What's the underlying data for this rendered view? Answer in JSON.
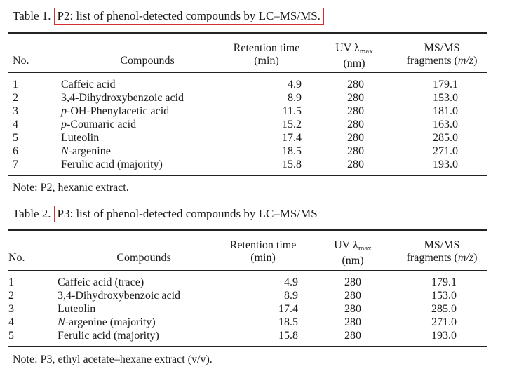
{
  "table1": {
    "label": "Table 1.",
    "caption": "P2: list of phenol-detected compounds by LC–MS/MS.",
    "headers": {
      "no": "No.",
      "compounds": "Compounds",
      "rt_line1": "Retention time",
      "rt_line2": "(min)",
      "uv_prefix": "UV λ",
      "uv_sub": "max",
      "uv_line2": "(nm)",
      "ms_line1": "MS/MS",
      "ms_line2_prefix": "fragments (",
      "ms_line2_ital": "m/z",
      "ms_line2_suffix": ")"
    },
    "rows": [
      {
        "no": "1",
        "prefix": "",
        "name": "Caffeic acid",
        "rt": "4.9",
        "uv": "280",
        "ms": "179.1"
      },
      {
        "no": "2",
        "prefix": "",
        "name": "3,4-Dihydroxybenzoic acid",
        "rt": "8.9",
        "uv": "280",
        "ms": "153.0"
      },
      {
        "no": "3",
        "prefix": "p",
        "name": "-OH-Phenylacetic acid",
        "rt": "11.5",
        "uv": "280",
        "ms": "181.0"
      },
      {
        "no": "4",
        "prefix": "p",
        "name": "-Coumaric acid",
        "rt": "15.2",
        "uv": "280",
        "ms": "163.0"
      },
      {
        "no": "5",
        "prefix": "",
        "name": "Luteolin",
        "rt": "17.4",
        "uv": "280",
        "ms": "285.0"
      },
      {
        "no": "6",
        "prefix": "N",
        "name": "-argenine",
        "rt": "18.5",
        "uv": "280",
        "ms": "271.0"
      },
      {
        "no": "7",
        "prefix": "",
        "name": "Ferulic acid (majority)",
        "rt": "15.8",
        "uv": "280",
        "ms": "193.0"
      }
    ],
    "note": "Note: P2, hexanic extract."
  },
  "table2": {
    "label": "Table 2.",
    "caption": "P3: list of phenol-detected compounds by LC–MS/MS",
    "headers": {
      "no": "No.",
      "compounds": "Compounds",
      "rt_line1": "Retention time",
      "rt_line2": "(min)",
      "uv_prefix": "UV λ",
      "uv_sub": "max",
      "uv_line2": "(nm)",
      "ms_line1": "MS/MS",
      "ms_line2_prefix": "fragments (",
      "ms_line2_ital": "m/z",
      "ms_line2_suffix": ")"
    },
    "rows": [
      {
        "no": "1",
        "prefix": "",
        "name": "Caffeic acid (trace)",
        "rt": "4.9",
        "uv": "280",
        "ms": "179.1"
      },
      {
        "no": "2",
        "prefix": "",
        "name": "3,4-Dihydroxybenzoic acid",
        "rt": "8.9",
        "uv": "280",
        "ms": "153.0"
      },
      {
        "no": "3",
        "prefix": "",
        "name": "Luteolin",
        "rt": "17.4",
        "uv": "280",
        "ms": "285.0"
      },
      {
        "no": "4",
        "prefix": "N",
        "name": "-argenine (majority)",
        "rt": "18.5",
        "uv": "280",
        "ms": "271.0"
      },
      {
        "no": "5",
        "prefix": "",
        "name": "Ferulic acid (majority)",
        "rt": "15.8",
        "uv": "280",
        "ms": "193.0"
      }
    ],
    "note": "Note: P3, ethyl acetate–hexane extract (v/v)."
  }
}
